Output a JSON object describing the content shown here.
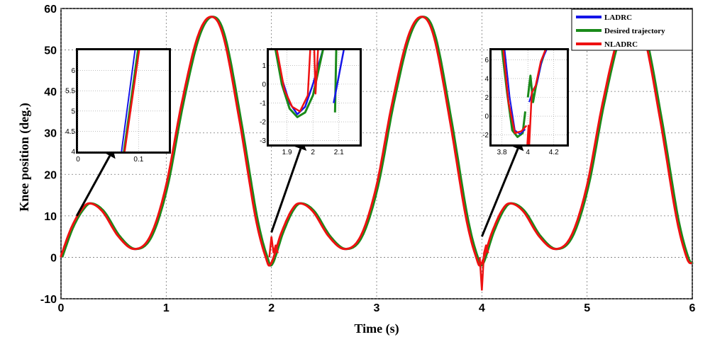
{
  "chart_data": {
    "type": "line",
    "xlabel": "Time (s)",
    "ylabel": "Knee position  (deg.)",
    "xlim": [
      0,
      6
    ],
    "ylim": [
      -10,
      60
    ],
    "xticks": [
      "0",
      "1",
      "2",
      "3",
      "4",
      "5",
      "6"
    ],
    "yticks": [
      "-10",
      "0",
      "10",
      "20",
      "30",
      "40",
      "50",
      "60"
    ],
    "grid": true,
    "legend_position": "top-right",
    "series": [
      {
        "name": "LADRC",
        "color": "#1515e8"
      },
      {
        "name": "Desired trajectory",
        "color": "#1a8a1a"
      },
      {
        "name": "NLADRC",
        "color": "#ee1111"
      }
    ],
    "desired_trajectory": {
      "x": [
        0,
        0.1,
        0.2,
        0.28,
        0.4,
        0.55,
        0.7,
        0.85,
        1.0,
        1.15,
        1.3,
        1.43,
        1.55,
        1.7,
        1.85,
        1.95,
        2.0,
        2.1,
        2.2,
        2.28,
        2.4,
        2.55,
        2.7,
        2.85,
        3.0,
        3.15,
        3.3,
        3.43,
        3.55,
        3.7,
        3.85,
        3.95,
        4.0,
        4.1,
        4.2,
        4.28,
        4.4,
        4.55,
        4.7,
        4.85,
        5.0,
        5.15,
        5.3,
        5.43,
        5.55,
        5.7,
        5.85,
        5.95,
        6.0
      ],
      "y": [
        0,
        7,
        11.5,
        13,
        11,
        5,
        2,
        5,
        17,
        37,
        53,
        58,
        53,
        33,
        10,
        0,
        -1.5,
        6,
        11.5,
        13,
        11,
        5,
        2,
        5,
        17,
        37,
        53,
        58,
        53,
        33,
        10,
        0,
        -1.5,
        6,
        11.5,
        13,
        11,
        5,
        2,
        5,
        17,
        37,
        53,
        58,
        53,
        33,
        10,
        0,
        -1.5
      ]
    },
    "insets": [
      {
        "xlim": [
          0,
          0.15
        ],
        "ylim": [
          4,
          6.5
        ],
        "xticks": [
          "0",
          "0.1"
        ],
        "yticks": [
          "4",
          "4.5",
          "5",
          "5.5",
          "6"
        ],
        "points_to_x": 0.15,
        "points_to_y": 10
      },
      {
        "xlim": [
          1.83,
          2.18
        ],
        "ylim": [
          -3.2,
          1.8
        ],
        "xticks": [
          "1.9",
          "2",
          "2.1"
        ],
        "yticks": [
          "-3",
          "-2",
          "-1",
          "0",
          "1"
        ],
        "points_to_x": 2.0,
        "points_to_y": 6
      },
      {
        "xlim": [
          3.72,
          4.3
        ],
        "ylim": [
          -3,
          7
        ],
        "xticks": [
          "3.8",
          "4",
          "4.2"
        ],
        "yticks": [
          "-2",
          "0",
          "2",
          "4",
          "6"
        ],
        "points_to_x": 4.0,
        "points_to_y": 5
      }
    ]
  }
}
